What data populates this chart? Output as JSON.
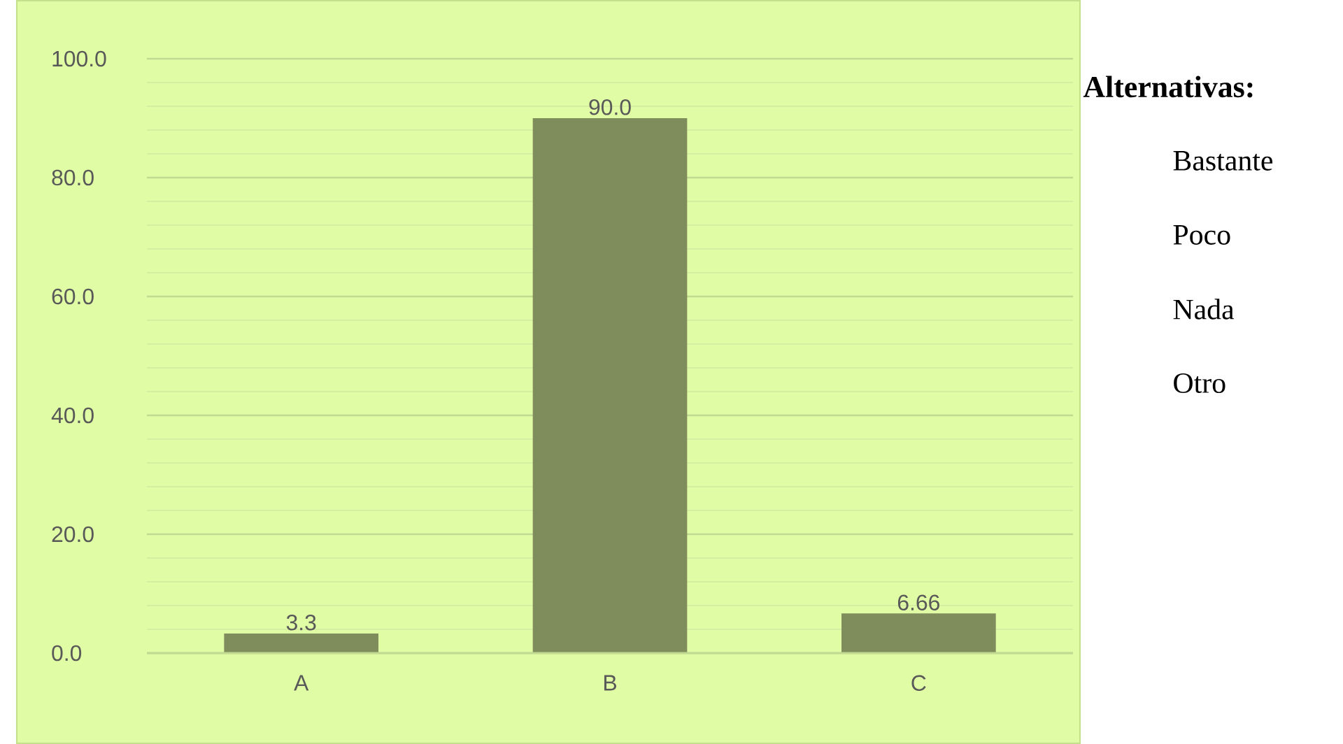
{
  "chart_data": {
    "type": "bar",
    "categories": [
      "A",
      "B",
      "C"
    ],
    "values": [
      3.3,
      90.0,
      6.66
    ],
    "value_labels": [
      "3.3",
      "90.0",
      "6.66"
    ],
    "color": "#7f8c5c",
    "ylim": [
      0,
      100
    ],
    "yticks": [
      {
        "value": 0,
        "label": "0.0"
      },
      {
        "value": 4,
        "label": null
      },
      {
        "value": 8,
        "label": null
      },
      {
        "value": 12,
        "label": null
      },
      {
        "value": 16,
        "label": null
      },
      {
        "value": 20,
        "label": "20.0"
      },
      {
        "value": 24,
        "label": null
      },
      {
        "value": 28,
        "label": null
      },
      {
        "value": 32,
        "label": null
      },
      {
        "value": 36,
        "label": null
      },
      {
        "value": 40,
        "label": "40.0"
      },
      {
        "value": 44,
        "label": null
      },
      {
        "value": 48,
        "label": null
      },
      {
        "value": 52,
        "label": null
      },
      {
        "value": 56,
        "label": null
      },
      {
        "value": 60,
        "label": "60.0"
      },
      {
        "value": 64,
        "label": null
      },
      {
        "value": 68,
        "label": null
      },
      {
        "value": 72,
        "label": null
      },
      {
        "value": 76,
        "label": null
      },
      {
        "value": 80,
        "label": "80.0"
      },
      {
        "value": 84,
        "label": null
      },
      {
        "value": 88,
        "label": null
      },
      {
        "value": 92,
        "label": null
      },
      {
        "value": 96,
        "label": null
      },
      {
        "value": 100,
        "label": "100.0"
      }
    ],
    "grid": "y",
    "annotations": [
      "Alternativas:",
      "Bastante",
      "Poco",
      "Nada",
      "Otro"
    ]
  }
}
